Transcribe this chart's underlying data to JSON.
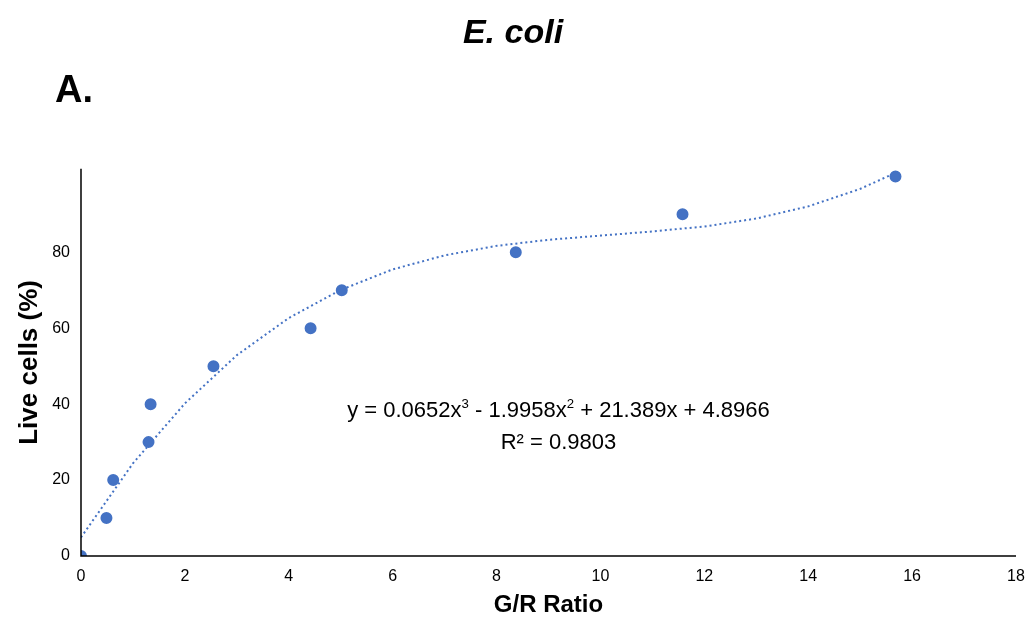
{
  "chart_data": {
    "type": "scatter",
    "title": "E. coli",
    "xlabel": "G/R Ratio",
    "ylabel": "Live cells (%)",
    "annotations": [
      "A.",
      "y = 0.0652x$^{3}$ - 1.9958x$^{2}$ + 21.389x + 4.8966",
      "R² = 0.9803"
    ],
    "series": [
      {
        "type": "scatter",
        "color": "#4472c4",
        "marker": "circle",
        "x": [
          0,
          0.49,
          0.62,
          1.3,
          1.34,
          2.55,
          4.42,
          5.02,
          8.37,
          11.58,
          15.68
        ],
        "values": [
          0,
          10,
          20,
          30,
          40,
          50,
          60,
          70,
          80,
          90,
          100
        ]
      },
      {
        "type": "line",
        "color": "#4472c4",
        "marker": "none",
        "line_style": "dotted",
        "x": [
          0,
          1,
          2,
          3,
          4,
          5,
          6,
          7,
          8,
          9,
          10,
          11,
          12,
          13,
          14,
          15,
          15.69
        ],
        "values": [
          4.9,
          24.4,
          40.2,
          52.9,
          62.7,
          70.1,
          75.5,
          79.2,
          81.7,
          83.3,
          84.4,
          85.5,
          86.8,
          88.9,
          92.1,
          96.7,
          101.0
        ]
      }
    ],
    "xlim": [
      0,
      18
    ],
    "xticks": [
      0,
      2,
      4,
      6,
      8,
      10,
      12,
      14,
      16,
      18
    ],
    "ylim": [
      0,
      102
    ],
    "yticks": [
      0,
      20,
      40,
      60,
      80
    ],
    "grid": false,
    "legend": false
  }
}
